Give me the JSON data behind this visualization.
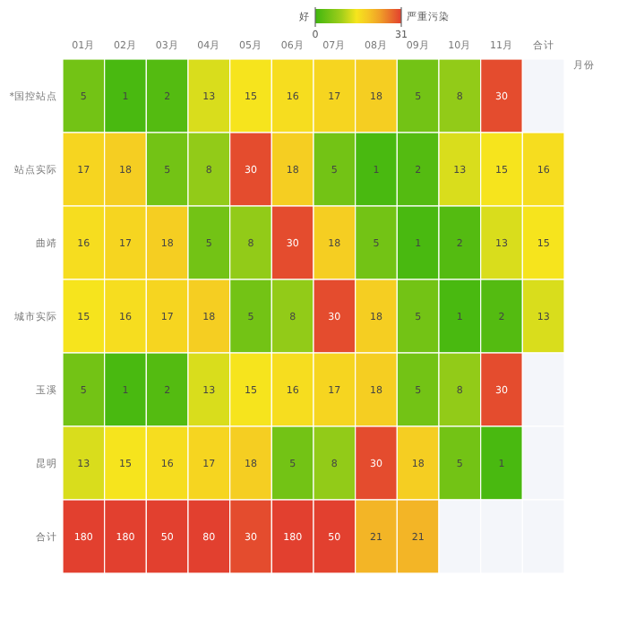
{
  "chart_data": {
    "type": "heatmap",
    "xlabel": "月份",
    "categories": [
      "01月",
      "02月",
      "03月",
      "04月",
      "05月",
      "06月",
      "07月",
      "08月",
      "09月",
      "10月",
      "11月",
      "合计"
    ],
    "y_categories": [
      "*国控站点",
      "站点实际",
      "曲靖",
      "城市实际",
      "玉溪",
      "昆明",
      "合计"
    ],
    "cells": [
      [
        5,
        1,
        2,
        13,
        15,
        16,
        17,
        18,
        5,
        8,
        30,
        null
      ],
      [
        17,
        18,
        5,
        8,
        30,
        18,
        5,
        1,
        2,
        13,
        15,
        16
      ],
      [
        16,
        17,
        18,
        5,
        8,
        30,
        18,
        5,
        1,
        2,
        13,
        15
      ],
      [
        15,
        16,
        17,
        18,
        5,
        8,
        30,
        18,
        5,
        1,
        2,
        13
      ],
      [
        5,
        1,
        2,
        13,
        15,
        16,
        17,
        18,
        5,
        8,
        30,
        null
      ],
      [
        13,
        15,
        16,
        17,
        18,
        5,
        8,
        30,
        18,
        5,
        1,
        null
      ],
      [
        180,
        180,
        50,
        80,
        30,
        180,
        50,
        21,
        21,
        null,
        null,
        null
      ]
    ],
    "data_labels": true,
    "clim": [
      0,
      31
    ],
    "cticks": [
      0,
      31
    ],
    "annotations": [
      "好",
      "严重污染"
    ]
  }
}
